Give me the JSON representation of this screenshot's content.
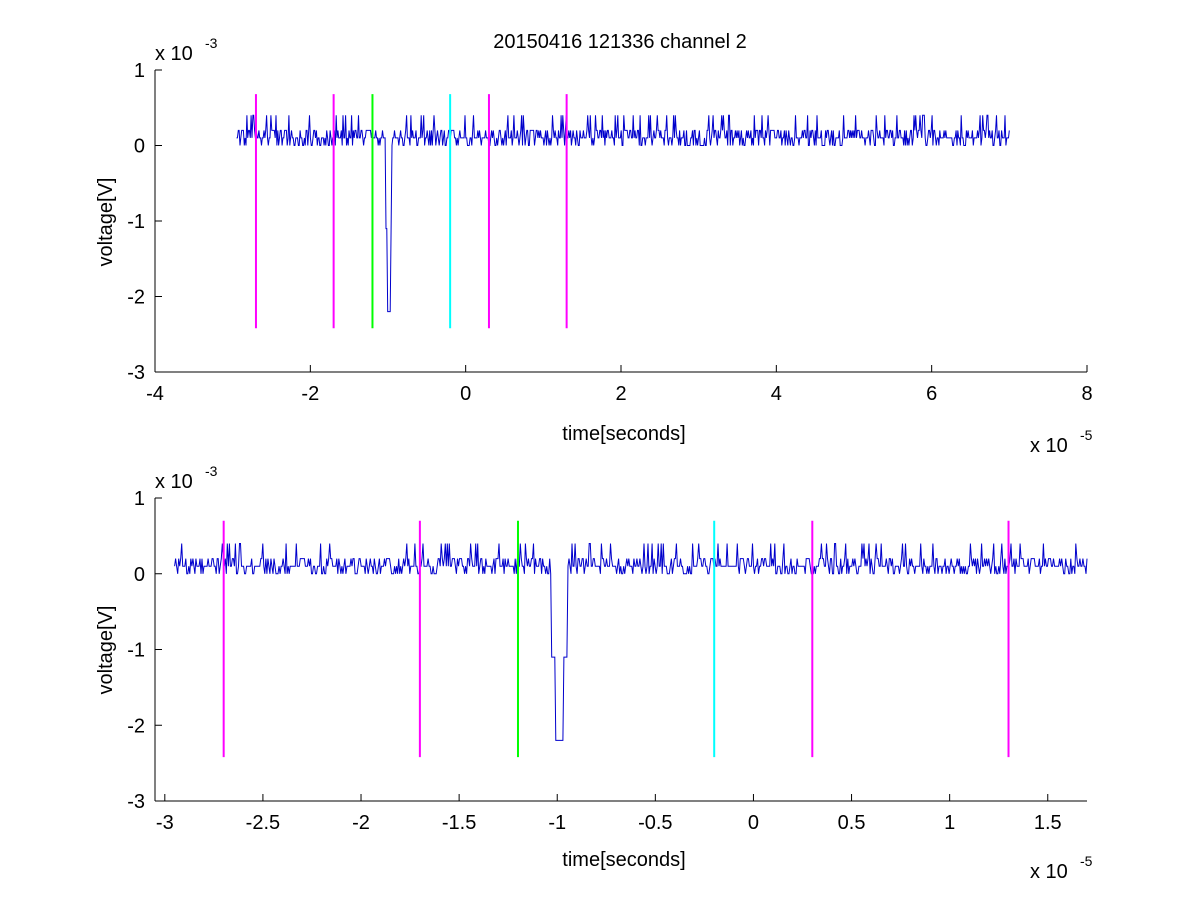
{
  "figure": {
    "title": "20150416 121336 channel 2"
  },
  "chart_data": [
    {
      "type": "line",
      "title": "20150416 121336 channel 2",
      "xlabel": "time[seconds]",
      "ylabel": "voltage[V]",
      "x_exponent_label": "x 10",
      "x_exponent": "-5",
      "y_exponent_label": "x 10",
      "y_exponent": "-3",
      "xlim": [
        -4,
        8
      ],
      "ylim": [
        -3,
        1
      ],
      "xticks": [
        -4,
        -2,
        0,
        2,
        4,
        6,
        8
      ],
      "xtick_labels": [
        "-4",
        "-2",
        "0",
        "2",
        "4",
        "6",
        "8"
      ],
      "yticks": [
        1,
        0,
        -1,
        -2,
        -3
      ],
      "ytick_labels": [
        "1",
        "0",
        "-1",
        "-2",
        "-3"
      ],
      "grid": false,
      "series": [
        {
          "color": "#0000cc",
          "x_range": [
            -2.95,
            7.0
          ],
          "baseline": 0.1,
          "noise_levels": [
            0.2,
            0.1,
            0.0,
            0.4
          ],
          "spike": {
            "x": -0.99,
            "min": -2.2
          }
        }
      ],
      "markers": [
        {
          "x": -2.7,
          "color": "#ff00ff",
          "y_top": 0.68,
          "y_bottom": -2.42
        },
        {
          "x": -1.7,
          "color": "#ff00ff",
          "y_top": 0.68,
          "y_bottom": -2.42
        },
        {
          "x": -1.2,
          "color": "#00ff00",
          "y_top": 0.68,
          "y_bottom": -2.42
        },
        {
          "x": -0.2,
          "color": "#00ffff",
          "y_top": 0.68,
          "y_bottom": -2.42
        },
        {
          "x": 0.3,
          "color": "#ff00ff",
          "y_top": 0.68,
          "y_bottom": -2.42
        },
        {
          "x": 1.3,
          "color": "#ff00ff",
          "y_top": 0.68,
          "y_bottom": -2.42
        }
      ]
    },
    {
      "type": "line",
      "title": "",
      "xlabel": "time[seconds]",
      "ylabel": "voltage[V]",
      "x_exponent_label": "x 10",
      "x_exponent": "-5",
      "y_exponent_label": "x 10",
      "y_exponent": "-3",
      "xlim": [
        -3.05,
        1.7
      ],
      "ylim": [
        -3,
        1
      ],
      "xticks": [
        -3,
        -2.5,
        -2,
        -1.5,
        -1,
        -0.5,
        0,
        0.5,
        1,
        1.5
      ],
      "xtick_labels": [
        "-3",
        "-2.5",
        "-2",
        "-1.5",
        "-1",
        "-0.5",
        "0",
        "0.5",
        "1",
        "1.5"
      ],
      "yticks": [
        1,
        0,
        -1,
        -2,
        -3
      ],
      "ytick_labels": [
        "1",
        "0",
        "-1",
        "-2",
        "-3"
      ],
      "grid": false,
      "series": [
        {
          "color": "#0000cc",
          "x_range": [
            -2.95,
            1.7
          ],
          "baseline": 0.1,
          "noise_levels": [
            0.2,
            0.1,
            0.0,
            0.4
          ],
          "spike": {
            "x": -0.99,
            "min": -2.2
          }
        }
      ],
      "markers": [
        {
          "x": -2.7,
          "color": "#ff00ff",
          "y_top": 0.7,
          "y_bottom": -2.42
        },
        {
          "x": -1.7,
          "color": "#ff00ff",
          "y_top": 0.7,
          "y_bottom": -2.42
        },
        {
          "x": -1.2,
          "color": "#00ff00",
          "y_top": 0.7,
          "y_bottom": -2.42
        },
        {
          "x": -0.2,
          "color": "#00ffff",
          "y_top": 0.7,
          "y_bottom": -2.42
        },
        {
          "x": 0.3,
          "color": "#ff00ff",
          "y_top": 0.7,
          "y_bottom": -2.42
        },
        {
          "x": 1.3,
          "color": "#ff00ff",
          "y_top": 0.7,
          "y_bottom": -2.42
        }
      ]
    }
  ]
}
